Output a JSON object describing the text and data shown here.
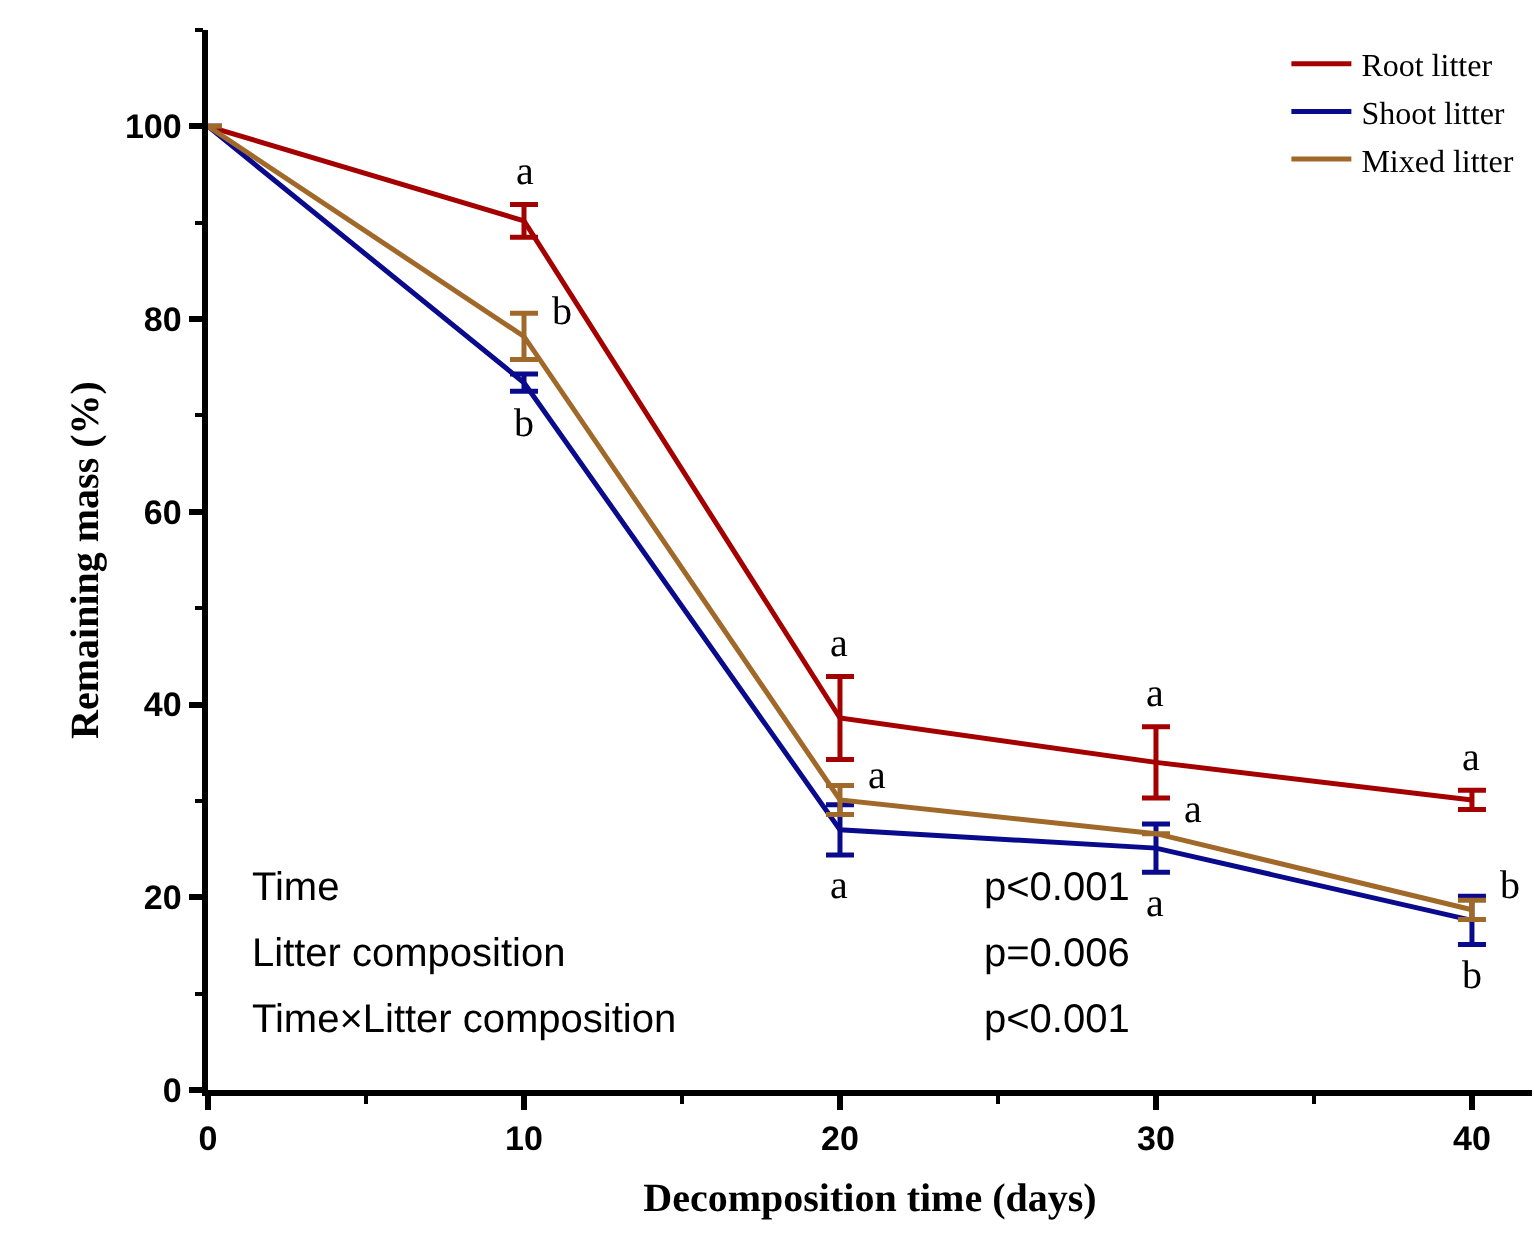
{
  "chart_data": {
    "type": "line",
    "xlabel": "Decomposition time (days)",
    "ylabel": "Remaining mass (%)",
    "x": [
      0,
      10,
      20,
      30,
      40
    ],
    "series": [
      {
        "name": "Root litter",
        "color": "#a50000",
        "values": [
          100,
          90.2,
          38.6,
          34.0,
          30.1
        ],
        "errors": [
          null,
          1.7,
          4.3,
          3.7,
          1.0
        ]
      },
      {
        "name": "Shoot litter",
        "color": "#0a0a8c",
        "values": [
          100,
          73.4,
          27.0,
          25.1,
          17.6
        ],
        "errors": [
          null,
          0.9,
          2.6,
          2.5,
          2.5
        ]
      },
      {
        "name": "Mixed litter",
        "color": "#a0692a",
        "values": [
          100,
          78.2,
          30.1,
          26.6,
          18.7
        ],
        "errors": [
          null,
          2.4,
          1.5,
          null,
          1.0
        ]
      }
    ],
    "xlim": [
      0,
      41.9
    ],
    "xticks": [
      0,
      10,
      20,
      30,
      40
    ],
    "ylim": [
      0,
      110
    ],
    "yticks": [
      0,
      20,
      40,
      60,
      80,
      100
    ],
    "legend": "top right",
    "marker": "none",
    "line_style": "solid",
    "annotations": [
      {
        "text": "a",
        "x": 10,
        "y": 90.2
      },
      {
        "text": "b",
        "x": 10,
        "y": 78.2
      },
      {
        "text": "b",
        "x": 10,
        "y": 73.4
      },
      {
        "text": "a",
        "x": 20,
        "y": 38.6
      },
      {
        "text": "a",
        "x": 20,
        "y": 30.1
      },
      {
        "text": "a",
        "x": 20,
        "y": 27.0
      },
      {
        "text": "a",
        "x": 30,
        "y": 34.0
      },
      {
        "text": "a",
        "x": 30,
        "y": 26.6
      },
      {
        "text": "a",
        "x": 30,
        "y": 25.1
      },
      {
        "text": "a",
        "x": 40,
        "y": 30.1
      },
      {
        "text": "b",
        "x": 40,
        "y": 18.7
      },
      {
        "text": "b",
        "x": 40,
        "y": 17.6
      },
      "Time",
      "p<0.001",
      "Litter composition",
      "p=0.006",
      "Time×Litter composition",
      "p<0.001"
    ]
  }
}
